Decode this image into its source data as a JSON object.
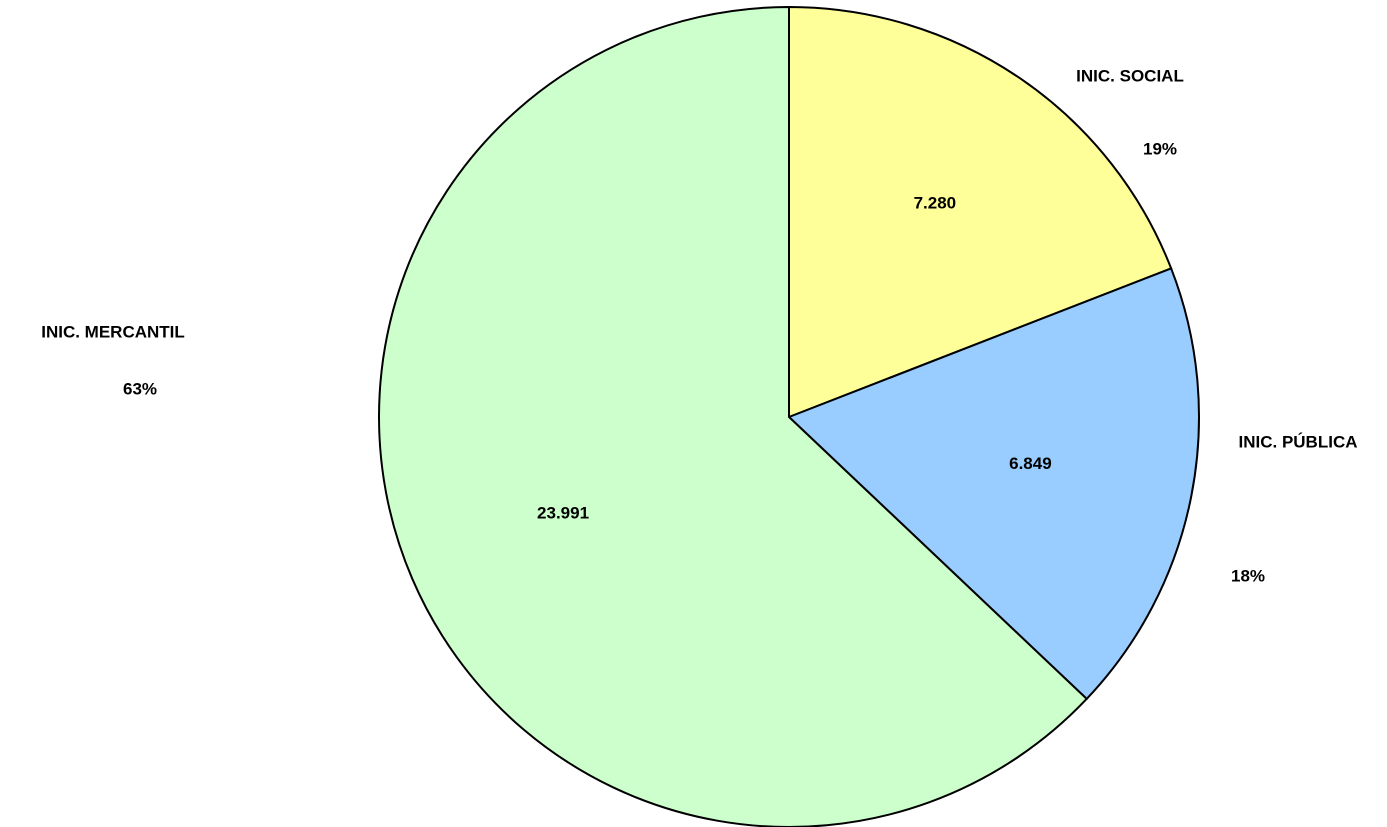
{
  "chart_data": {
    "type": "pie",
    "categories": [
      "INIC. SOCIAL",
      "INIC. PÚBLICA",
      "INIC. MERCANTIL"
    ],
    "values": [
      7280,
      6849,
      23991
    ],
    "value_labels": [
      "7.280",
      "6.849",
      "23.991"
    ],
    "percent_labels": [
      "19%",
      "18%",
      "63%"
    ],
    "colors": [
      "#ffff99",
      "#99ccff",
      "#ccffcc"
    ]
  }
}
